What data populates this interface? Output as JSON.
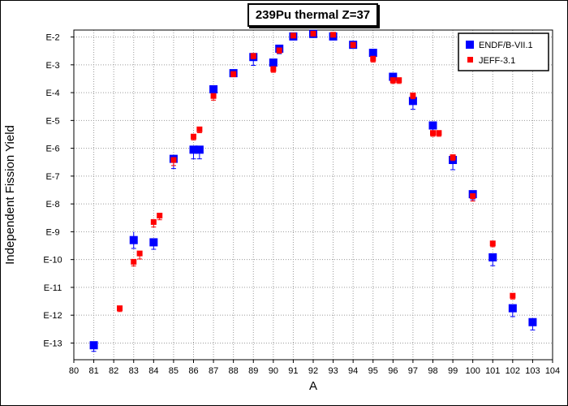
{
  "chart_data": {
    "type": "scatter",
    "title": "239Pu thermal Z=37",
    "xlabel": "A",
    "ylabel": "Independent Fission Yield",
    "x_range": [
      80,
      104
    ],
    "y_range_log10": [
      -13.6,
      -1.75
    ],
    "log_scale_y": true,
    "grid": true,
    "legend_position": "top-right",
    "x_ticks": [
      "80",
      "81",
      "82",
      "83",
      "84",
      "85",
      "86",
      "87",
      "88",
      "89",
      "90",
      "91",
      "92",
      "93",
      "94",
      "95",
      "96",
      "97",
      "98",
      "99",
      "100",
      "101",
      "102",
      "103",
      "104"
    ],
    "y_ticks": [
      {
        "exp": -2,
        "label": "E-2"
      },
      {
        "exp": -3,
        "label": "E-3"
      },
      {
        "exp": -4,
        "label": "E-4"
      },
      {
        "exp": -5,
        "label": "E-5"
      },
      {
        "exp": -6,
        "label": "E-6"
      },
      {
        "exp": -7,
        "label": "E-7"
      },
      {
        "exp": -8,
        "label": "E-8"
      },
      {
        "exp": -9,
        "label": "E-9"
      },
      {
        "exp": -10,
        "label": "E-10"
      },
      {
        "exp": -11,
        "label": "E-11"
      },
      {
        "exp": -12,
        "label": "E-12"
      },
      {
        "exp": -13,
        "label": "E-13"
      }
    ],
    "series": [
      {
        "name": "ENDF/B-VII.1",
        "color": "#0000ff",
        "marker": "square-large",
        "points": [
          {
            "x": 81,
            "log10y": -13.08,
            "err_lo": 0.22,
            "err_hi": 0.1
          },
          {
            "x": 83,
            "log10y": -9.3,
            "err_lo": 0.3,
            "err_hi": 0.3
          },
          {
            "x": 84,
            "log10y": -9.38,
            "err_lo": 0.25,
            "err_hi": 0.1
          },
          {
            "x": 85,
            "log10y": -6.38,
            "err_lo": 0.35,
            "err_hi": 0.1
          },
          {
            "x": 86,
            "log10y": -6.05,
            "err_lo": 0.33,
            "err_hi": 0.1
          },
          {
            "x": 86.3,
            "log10y": -6.05,
            "err_lo": 0.33,
            "err_hi": 0.1
          },
          {
            "x": 87,
            "log10y": -3.88,
            "err_lo": 0.2,
            "err_hi": 0.1
          },
          {
            "x": 88,
            "log10y": -3.3,
            "err_lo": 0.12,
            "err_hi": 0.05
          },
          {
            "x": 89,
            "log10y": -2.72,
            "err_lo": 0.3,
            "err_hi": 0.1
          },
          {
            "x": 90,
            "log10y": -2.92,
            "err_lo": 0.15,
            "err_hi": 0.05
          },
          {
            "x": 90.3,
            "log10y": -2.42,
            "err_lo": 0.18,
            "err_hi": 0.05
          },
          {
            "x": 91,
            "log10y": -1.98,
            "err_lo": 0.08,
            "err_hi": 0.02
          },
          {
            "x": 92,
            "log10y": -1.89,
            "err_lo": 0.05,
            "err_hi": 0.02
          },
          {
            "x": 93,
            "log10y": -1.98,
            "err_lo": 0.05,
            "err_hi": 0.02
          },
          {
            "x": 94,
            "log10y": -2.28,
            "err_lo": 0.08,
            "err_hi": 0.02
          },
          {
            "x": 95,
            "log10y": -2.57,
            "err_lo": 0.12,
            "err_hi": 0.02
          },
          {
            "x": 96,
            "log10y": -3.43,
            "err_lo": 0.2,
            "err_hi": 0.05
          },
          {
            "x": 97,
            "log10y": -4.3,
            "err_lo": 0.3,
            "err_hi": 0.1
          },
          {
            "x": 98,
            "log10y": -5.18,
            "err_lo": 0.25,
            "err_hi": 0.1
          },
          {
            "x": 99,
            "log10y": -6.42,
            "err_lo": 0.35,
            "err_hi": 0.1
          },
          {
            "x": 100,
            "log10y": -7.65,
            "err_lo": 0.2,
            "err_hi": 0.1
          },
          {
            "x": 101,
            "log10y": -9.92,
            "err_lo": 0.3,
            "err_hi": 0.1
          },
          {
            "x": 102,
            "log10y": -11.75,
            "err_lo": 0.3,
            "err_hi": 0.1
          },
          {
            "x": 103,
            "log10y": -12.25,
            "err_lo": 0.28,
            "err_hi": 0.1
          }
        ]
      },
      {
        "name": "JEFF-3.1",
        "color": "#ff0000",
        "marker": "square-small",
        "points": [
          {
            "x": 82.3,
            "log10y": -11.75,
            "err_lo": 0.12,
            "err_hi": 0.05
          },
          {
            "x": 83,
            "log10y": -10.08,
            "err_lo": 0.15,
            "err_hi": 0.05
          },
          {
            "x": 83.3,
            "log10y": -9.78,
            "err_lo": 0.2,
            "err_hi": 0.05
          },
          {
            "x": 84,
            "log10y": -8.65,
            "err_lo": 0.18,
            "err_hi": 0.05
          },
          {
            "x": 84.3,
            "log10y": -8.42,
            "err_lo": 0.15,
            "err_hi": 0.05
          },
          {
            "x": 85,
            "log10y": -6.42,
            "err_lo": 0.2,
            "err_hi": 0.05
          },
          {
            "x": 86,
            "log10y": -5.58,
            "err_lo": 0.12,
            "err_hi": 0.05
          },
          {
            "x": 86.3,
            "log10y": -5.32,
            "err_lo": 0.12,
            "err_hi": 0.05
          },
          {
            "x": 87,
            "log10y": -4.12,
            "err_lo": 0.15,
            "err_hi": 0.05
          },
          {
            "x": 88,
            "log10y": -3.33,
            "err_lo": 0.1,
            "err_hi": 0.05
          },
          {
            "x": 89,
            "log10y": -2.68,
            "err_lo": 0.1,
            "err_hi": 0.05
          },
          {
            "x": 90,
            "log10y": -3.15,
            "err_lo": 0.12,
            "err_hi": 0.05
          },
          {
            "x": 90.3,
            "log10y": -2.48,
            "err_lo": 0.1,
            "err_hi": 0.05
          },
          {
            "x": 91,
            "log10y": -1.95,
            "err_lo": 0.05,
            "err_hi": 0.02
          },
          {
            "x": 92,
            "log10y": -1.88,
            "err_lo": 0.04,
            "err_hi": 0.02
          },
          {
            "x": 93,
            "log10y": -1.92,
            "err_lo": 0.05,
            "err_hi": 0.02
          },
          {
            "x": 94,
            "log10y": -2.28,
            "err_lo": 0.1,
            "err_hi": 0.02
          },
          {
            "x": 95,
            "log10y": -2.78,
            "err_lo": 0.12,
            "err_hi": 0.05
          },
          {
            "x": 96,
            "log10y": -3.55,
            "err_lo": 0.12,
            "err_hi": 0.05
          },
          {
            "x": 96.3,
            "log10y": -3.55,
            "err_lo": 0.12,
            "err_hi": 0.05
          },
          {
            "x": 97,
            "log10y": -4.1,
            "err_lo": 0.12,
            "err_hi": 0.05
          },
          {
            "x": 98,
            "log10y": -5.45,
            "err_lo": 0.12,
            "err_hi": 0.05
          },
          {
            "x": 98.3,
            "log10y": -5.45,
            "err_lo": 0.12,
            "err_hi": 0.05
          },
          {
            "x": 99,
            "log10y": -6.32,
            "err_lo": 0.12,
            "err_hi": 0.05
          },
          {
            "x": 100,
            "log10y": -7.72,
            "err_lo": 0.18,
            "err_hi": 0.05
          },
          {
            "x": 101,
            "log10y": -9.42,
            "err_lo": 0.12,
            "err_hi": 0.05
          },
          {
            "x": 102,
            "log10y": -11.3,
            "err_lo": 0.12,
            "err_hi": 0.05
          }
        ]
      }
    ]
  }
}
